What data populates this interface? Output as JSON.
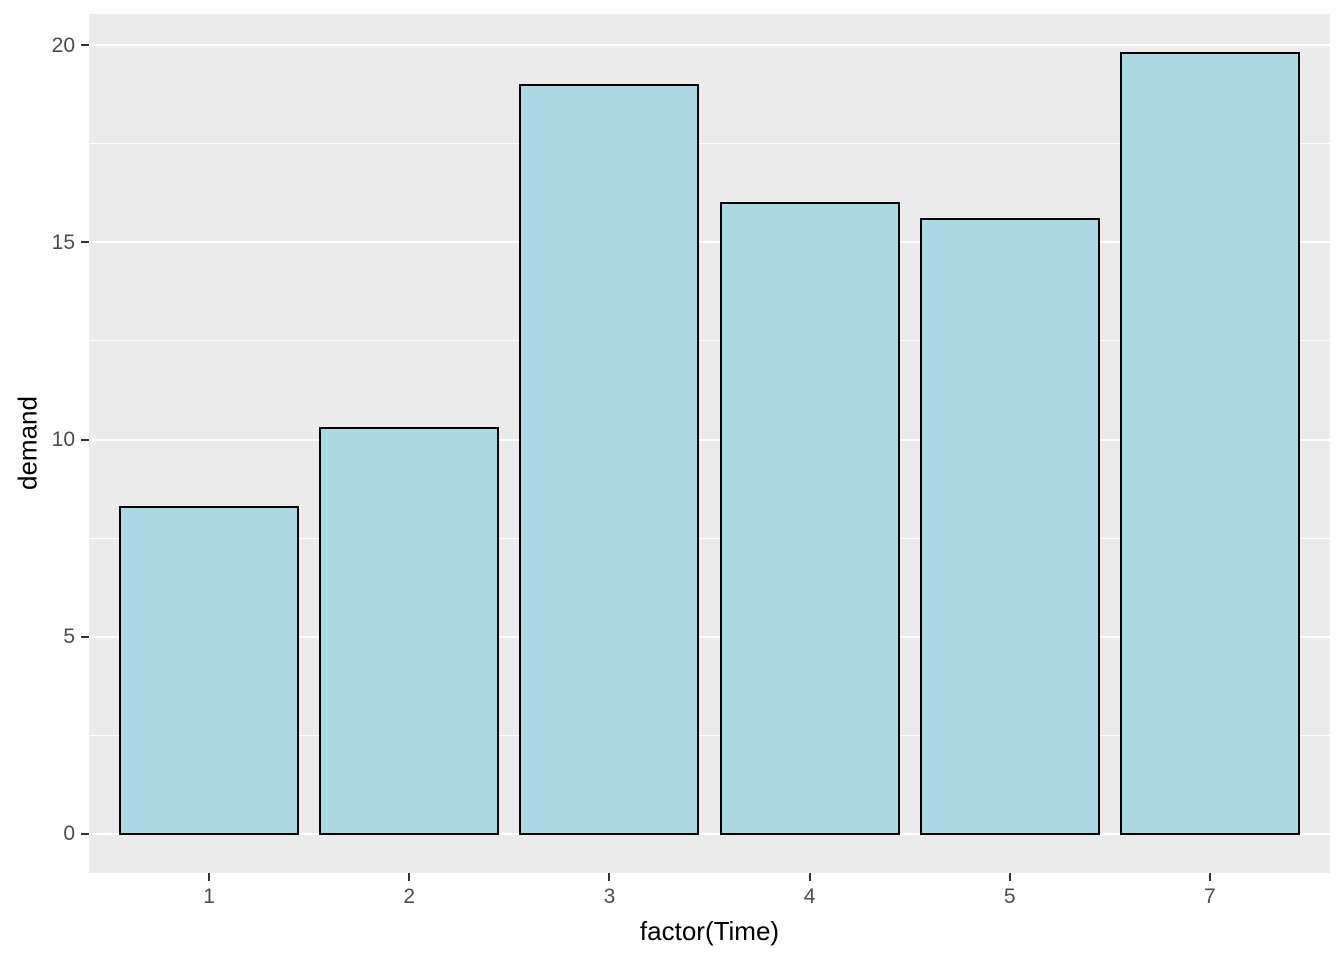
{
  "chart_data": {
    "type": "bar",
    "categories": [
      "1",
      "2",
      "3",
      "4",
      "5",
      "7"
    ],
    "values": [
      8.3,
      10.3,
      19.0,
      16.0,
      15.6,
      19.8
    ],
    "title": "",
    "xlabel": "factor(Time)",
    "ylabel": "demand",
    "ylim": [
      0,
      20
    ],
    "ylim_expanded": [
      -0.99,
      20.79
    ],
    "yticks": [
      0,
      5,
      10,
      15,
      20
    ],
    "ytick_labels": [
      "0",
      "5",
      "10",
      "15",
      "20"
    ],
    "yticks_minor": [
      2.5,
      7.5,
      12.5,
      17.5
    ],
    "grid": true,
    "legend": false,
    "bar_width_frac": 0.9,
    "x_edge_pad": 0.6
  },
  "style": {
    "panel_bg": "#EBEBEB",
    "grid_major_color": "#FFFFFF",
    "grid_minor_color": "#FFFFFF",
    "bar_fill": "#ADD8E6",
    "bar_border": "#000000",
    "axis_text_color": "#4D4D4D",
    "axis_title_color": "#000000",
    "tick_mark_color": "#333333"
  }
}
